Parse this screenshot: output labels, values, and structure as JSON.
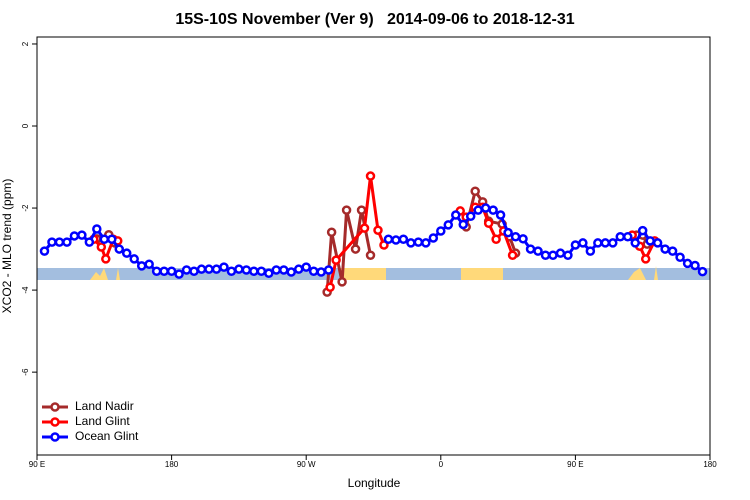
{
  "chart_data": {
    "type": "line",
    "title": "15S-10S November (Ver 9)   2014-09-06 to 2018-12-31",
    "x_label": "Longitude",
    "y_label": "XCO2 - MLO trend (ppm)",
    "xlim": [
      90,
      540
    ],
    "xticks": [
      {
        "value": 90,
        "label": "90 E"
      },
      180,
      {
        "value": 270,
        "label": "90 W"
      },
      {
        "value": 360,
        "label": "0"
      },
      {
        "value": 450,
        "label": "90 E"
      },
      {
        "value": 540,
        "label": "180"
      }
    ],
    "ylim": [
      -8.02,
      2.17
    ],
    "yticks": [
      -6,
      -4,
      -2,
      0,
      2
    ],
    "legend": "bottom-left",
    "series": [
      {
        "name": "Land Nadir",
        "color": "#a52a2a",
        "x": [
          130,
          138,
          142,
          200,
          284,
          287,
          294,
          297,
          303,
          307,
          313,
          350,
          377,
          383,
          388,
          392,
          401,
          406,
          410,
          450,
          491,
          495,
          498
        ],
        "values": [
          -2.75,
          -2.65,
          -2.85,
          null,
          -4.05,
          -2.59,
          -3.8,
          -2.05,
          -3.0,
          -2.05,
          -3.15,
          null,
          -2.46,
          -1.59,
          -1.85,
          -2.32,
          -2.39,
          -2.7,
          -3.1,
          null,
          -2.66,
          -2.66,
          -2.88
        ]
      },
      {
        "name": "Land Glint",
        "color": "#ff0000",
        "x": [
          128,
          133,
          136,
          141,
          144,
          200,
          286,
          290,
          309,
          313,
          318,
          322,
          350,
          373,
          377,
          383,
          388,
          392,
          397,
          402,
          408,
          450,
          488,
          493,
          497,
          503
        ],
        "values": [
          -2.76,
          -2.95,
          -3.24,
          -2.76,
          -2.8,
          null,
          -3.93,
          -3.27,
          -2.49,
          -1.22,
          -2.54,
          -2.9,
          null,
          -2.07,
          -2.22,
          -1.98,
          -1.98,
          -2.37,
          -2.76,
          -2.56,
          -3.15,
          null,
          -2.66,
          -2.93,
          -3.24,
          -2.8
        ]
      },
      {
        "name": "Ocean Glint",
        "color": "#0000ff",
        "x": [
          95,
          100,
          105,
          110,
          115,
          120,
          125,
          130,
          135,
          140,
          145,
          150,
          155,
          160,
          165,
          170,
          175,
          180,
          185,
          190,
          195,
          200,
          205,
          210,
          215,
          220,
          225,
          230,
          235,
          240,
          245,
          250,
          255,
          260,
          265,
          270,
          275,
          280,
          285,
          290,
          295,
          300,
          305,
          310,
          315,
          320,
          325,
          330,
          335,
          340,
          345,
          350,
          355,
          360,
          365,
          370,
          375,
          380,
          385,
          390,
          395,
          400,
          405,
          410,
          415,
          420,
          425,
          430,
          435,
          440,
          445,
          450,
          455,
          460,
          465,
          470,
          475,
          480,
          485,
          490,
          495,
          500,
          505,
          510,
          515,
          520,
          525,
          530,
          535
        ],
        "values": [
          -3.05,
          -2.83,
          -2.83,
          -2.83,
          -2.68,
          -2.66,
          -2.83,
          -2.51,
          -2.76,
          -2.76,
          -3.0,
          -3.1,
          -3.24,
          -3.41,
          -3.37,
          -3.54,
          -3.54,
          -3.54,
          -3.61,
          -3.51,
          -3.54,
          -3.49,
          -3.49,
          -3.49,
          -3.44,
          -3.54,
          -3.49,
          -3.51,
          -3.54,
          -3.54,
          -3.59,
          -3.51,
          -3.51,
          -3.56,
          -3.49,
          -3.44,
          -3.54,
          -3.56,
          -3.51,
          null,
          null,
          null,
          null,
          null,
          null,
          null,
          -2.76,
          -2.78,
          -2.76,
          -2.85,
          -2.83,
          -2.85,
          -2.73,
          -2.56,
          -2.41,
          -2.17,
          -2.4,
          -2.2,
          -2.05,
          -2.0,
          -2.05,
          -2.17,
          -2.6,
          -2.7,
          -2.75,
          -3.0,
          -3.05,
          -3.15,
          -3.15,
          -3.1,
          -3.15,
          -2.9,
          -2.85,
          -3.05,
          -2.85,
          -2.85,
          -2.85,
          -2.7,
          -2.7,
          -2.85,
          -2.55,
          -2.8,
          -2.85,
          -3.0,
          -3.05,
          -3.2,
          -3.35,
          -3.4,
          -3.55
        ]
      }
    ]
  }
}
